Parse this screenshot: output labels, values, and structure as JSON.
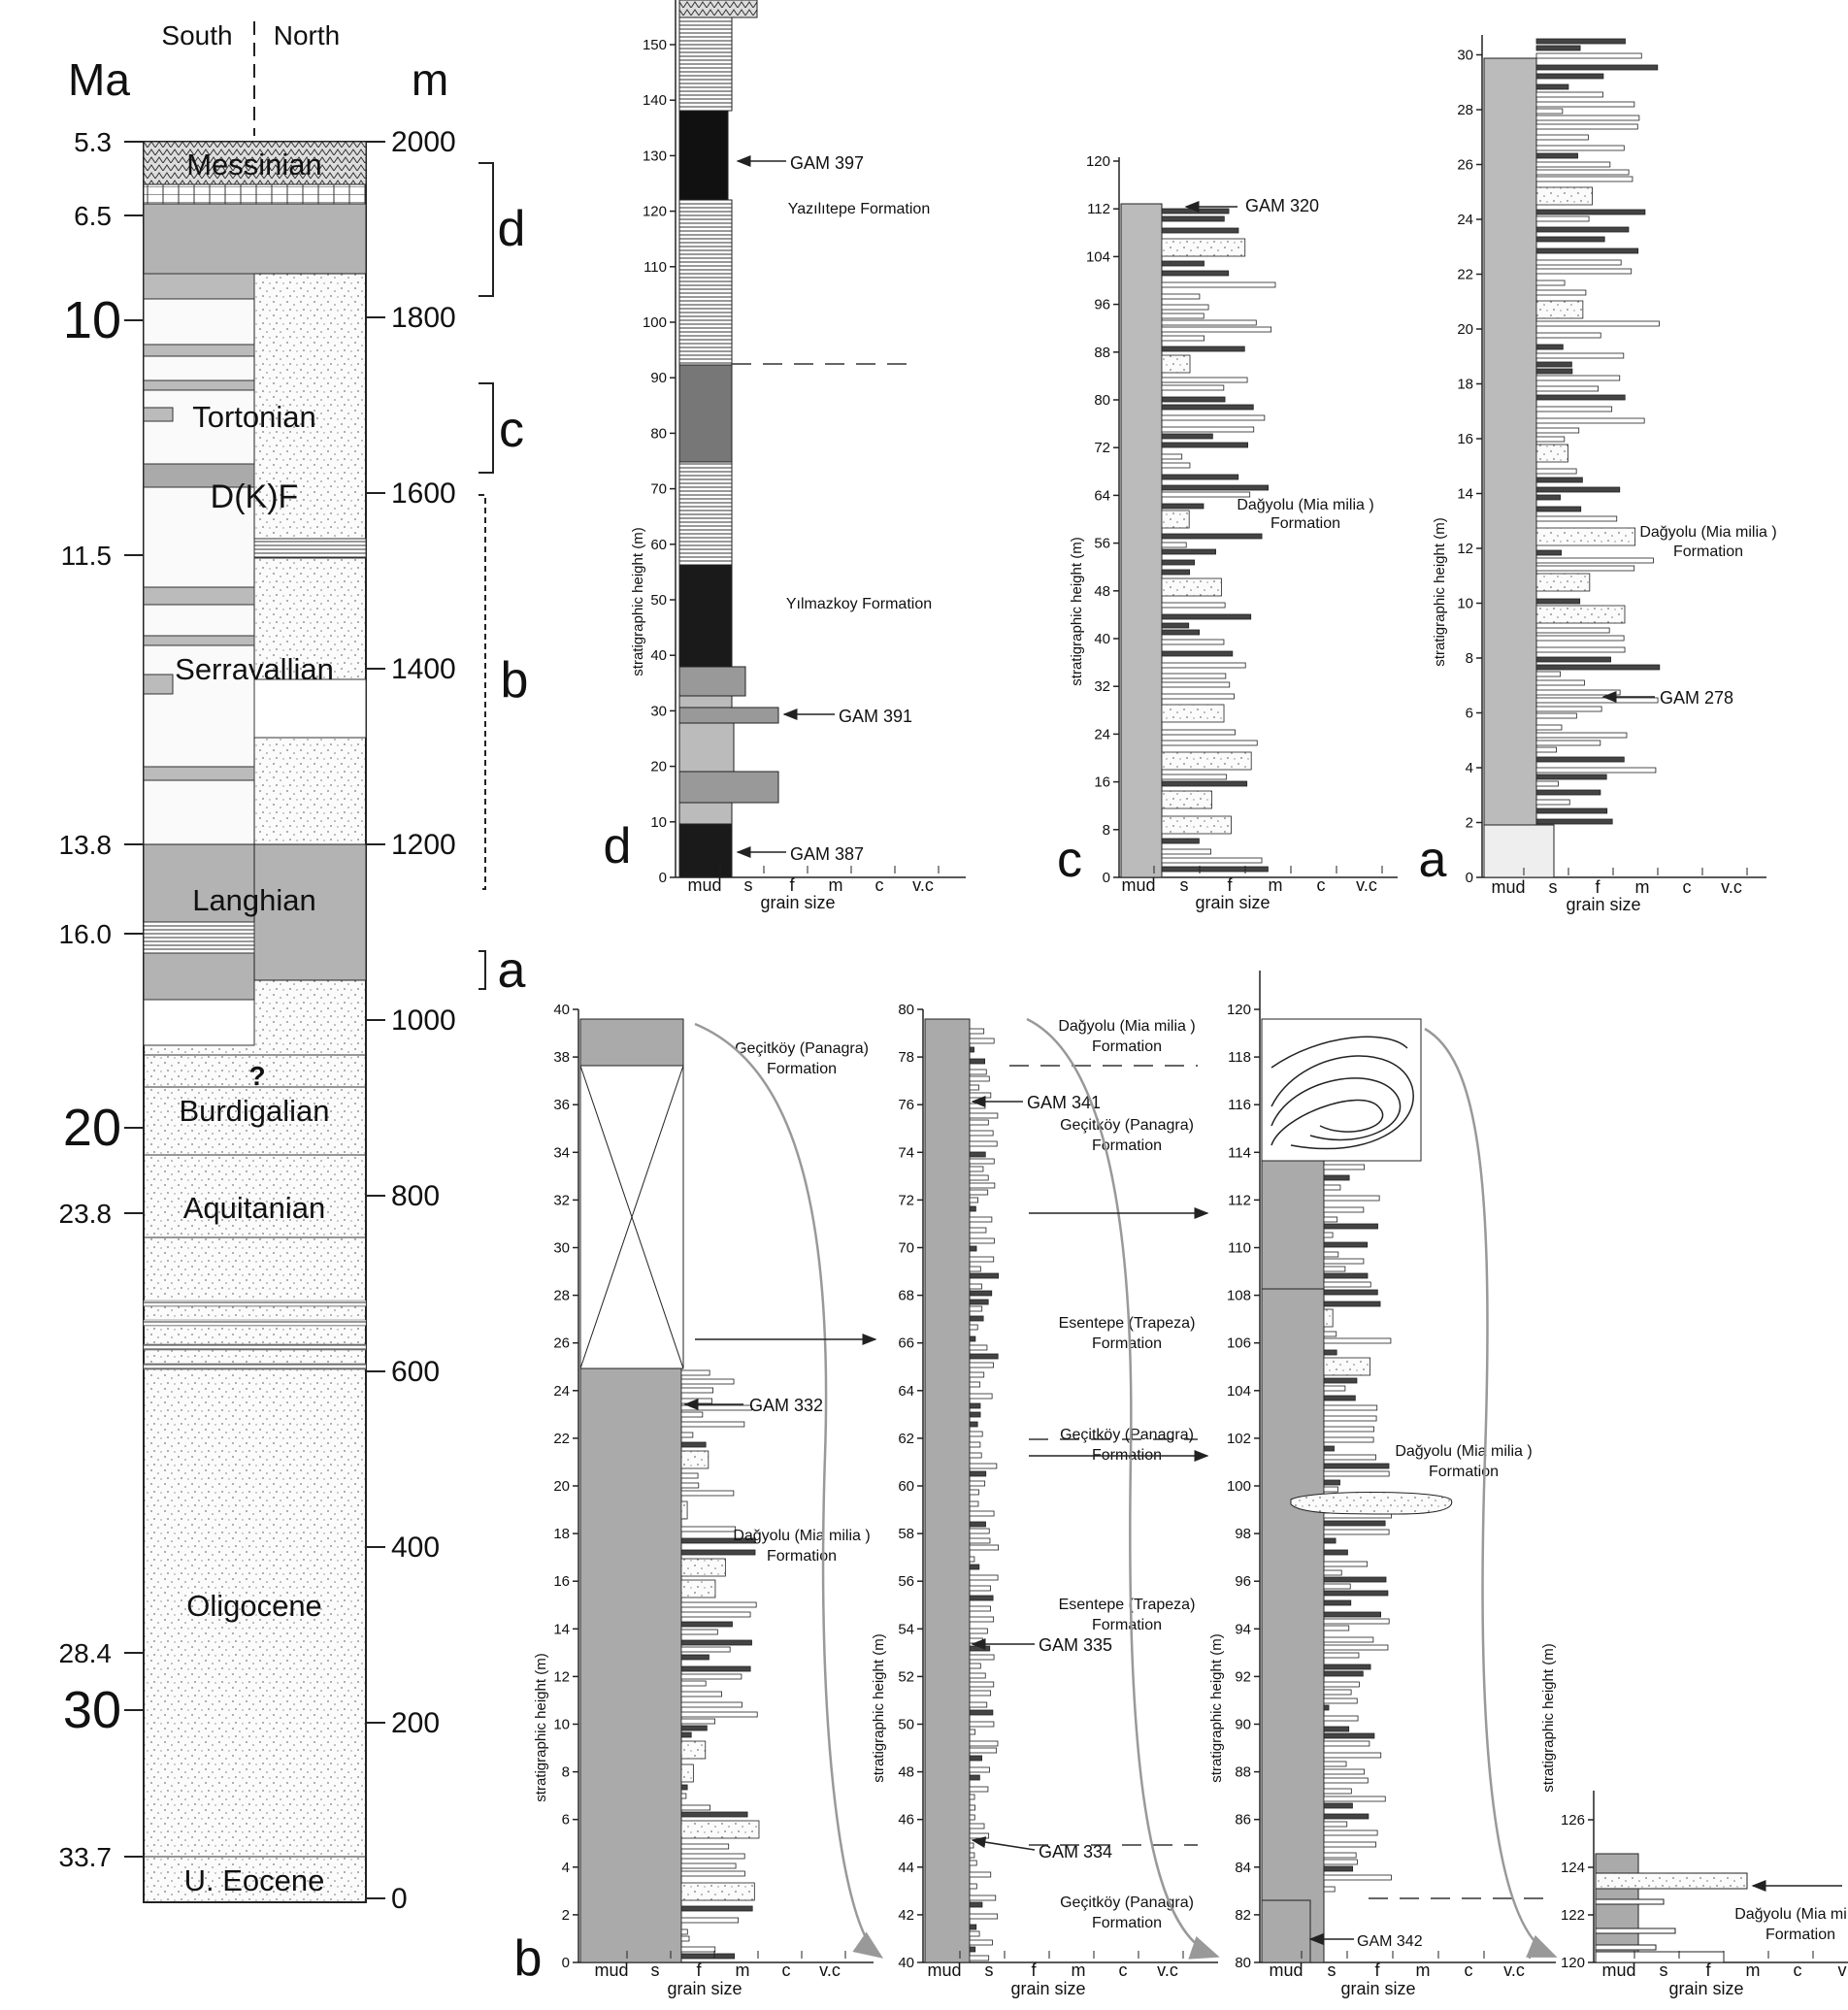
{
  "overview": {
    "ma_header": "Ma",
    "m_header": "m",
    "south_label": "South",
    "north_label": "North",
    "ma_ticks": [
      "5.3",
      "6.5",
      "10",
      "11.5",
      "13.8",
      "16.0",
      "20",
      "23.8",
      "28.4",
      "30",
      "33.7"
    ],
    "m_ticks": [
      "2000",
      "1800",
      "1600",
      "1400",
      "1200",
      "1000",
      "800",
      "600",
      "400",
      "200",
      "0"
    ],
    "stage_labels": [
      "Messinian",
      "Tortonian",
      "D(K)F",
      "Serravallian",
      "Langhian",
      "Burdigalian",
      "Aquitanian",
      "Oligocene",
      "U. Eocene"
    ],
    "question_mark": "?",
    "section_letters": [
      "d",
      "c",
      "b",
      "a"
    ]
  },
  "log_d": {
    "letter": "d",
    "y_ticks": [
      "0",
      "10",
      "20",
      "30",
      "40",
      "50",
      "60",
      "70",
      "80",
      "90",
      "100",
      "110",
      "120",
      "130",
      "140",
      "150"
    ],
    "samples": [
      "GAM 397",
      "GAM 391",
      "GAM 387"
    ],
    "formations": [
      "Yazılıtepe Formation",
      "Yılmazkoy Formation"
    ],
    "grain_labels": [
      "mud",
      "s",
      "f",
      "m",
      "c",
      "v.c"
    ],
    "x_title": "grain size",
    "y_title": "stratigraphic height (m)"
  },
  "log_c": {
    "letter": "c",
    "y_ticks": [
      "0",
      "8",
      "16",
      "24",
      "32",
      "40",
      "48",
      "56",
      "64",
      "72",
      "80",
      "88",
      "96",
      "104",
      "112",
      "120"
    ],
    "samples": [
      "GAM 320"
    ],
    "formation": [
      "Dağyolu (Mia milia )",
      "Formation"
    ],
    "grain_labels": [
      "mud",
      "s",
      "f",
      "m",
      "c",
      "v.c"
    ],
    "x_title": "grain size",
    "y_title": "stratigraphic height (m)"
  },
  "log_a": {
    "letter": "a",
    "y_ticks": [
      "0",
      "2",
      "4",
      "6",
      "8",
      "10",
      "12",
      "14",
      "16",
      "18",
      "20",
      "22",
      "24",
      "26",
      "28",
      "30"
    ],
    "samples": [
      "GAM 278"
    ],
    "formation": [
      "Dağyolu (Mia milia )",
      "Formation"
    ],
    "grain_labels": [
      "mud",
      "s",
      "f",
      "m",
      "c",
      "v.c"
    ],
    "x_title": "grain size",
    "y_title": "stratigraphic height (m)"
  },
  "log_b1": {
    "letter": "b",
    "y_ticks": [
      "0",
      "2",
      "4",
      "6",
      "8",
      "10",
      "12",
      "14",
      "16",
      "18",
      "20",
      "22",
      "24",
      "26",
      "28",
      "30",
      "32",
      "34",
      "36",
      "38",
      "40"
    ],
    "samples": [
      "GAM 332"
    ],
    "formations": [
      [
        "Geçitköy (Panagra)",
        "Formation"
      ],
      [
        "Dağyolu (Mia milia )",
        "Formation"
      ]
    ],
    "grain_labels": [
      "mud",
      "s",
      "f",
      "m",
      "c",
      "v.c"
    ],
    "x_title": "grain size",
    "y_title": "stratigraphic height (m)"
  },
  "log_b2": {
    "y_ticks": [
      "40",
      "42",
      "44",
      "46",
      "48",
      "50",
      "52",
      "54",
      "56",
      "58",
      "60",
      "62",
      "64",
      "66",
      "68",
      "70",
      "72",
      "74",
      "76",
      "78",
      "80"
    ],
    "samples": [
      "GAM 341",
      "GAM 335",
      "GAM 334"
    ],
    "formations": [
      [
        "Dağyolu (Mia milia )",
        "Formation"
      ],
      [
        "Geçitköy (Panagra)",
        "Formation"
      ],
      [
        "Esentepe (Trapeza)",
        "Formation"
      ],
      [
        "Geçitköy (Panagra)",
        "Formation"
      ],
      [
        "Esentepe (Trapeza)",
        "Formation"
      ],
      [
        "Geçitköy (Panagra)",
        "Formation"
      ]
    ],
    "grain_labels": [
      "mud",
      "s",
      "f",
      "m",
      "c",
      "v.c"
    ],
    "x_title": "grain size",
    "y_title": "stratigraphic height (m)"
  },
  "log_b3": {
    "y_ticks": [
      "80",
      "82",
      "84",
      "86",
      "88",
      "90",
      "92",
      "94",
      "96",
      "98",
      "100",
      "102",
      "104",
      "106",
      "108",
      "110",
      "112",
      "114",
      "116",
      "118",
      "120"
    ],
    "samples": [
      "GAM 342"
    ],
    "formation": [
      "Dağyolu (Mia milia )",
      "Formation"
    ],
    "grain_labels": [
      "mud",
      "s",
      "f",
      "m",
      "c",
      "v.c"
    ],
    "x_title": "grain size",
    "y_title": "stratigraphic height (m)"
  },
  "log_b4": {
    "y_ticks": [
      "120",
      "122",
      "124",
      "126"
    ],
    "formation": [
      "Dağyolu (Mia mi",
      "Formation"
    ],
    "grain_labels": [
      "mud",
      "s",
      "f",
      "m",
      "c",
      "v"
    ],
    "x_title": "grain size",
    "y_title": "stratigraphic height (m)"
  }
}
